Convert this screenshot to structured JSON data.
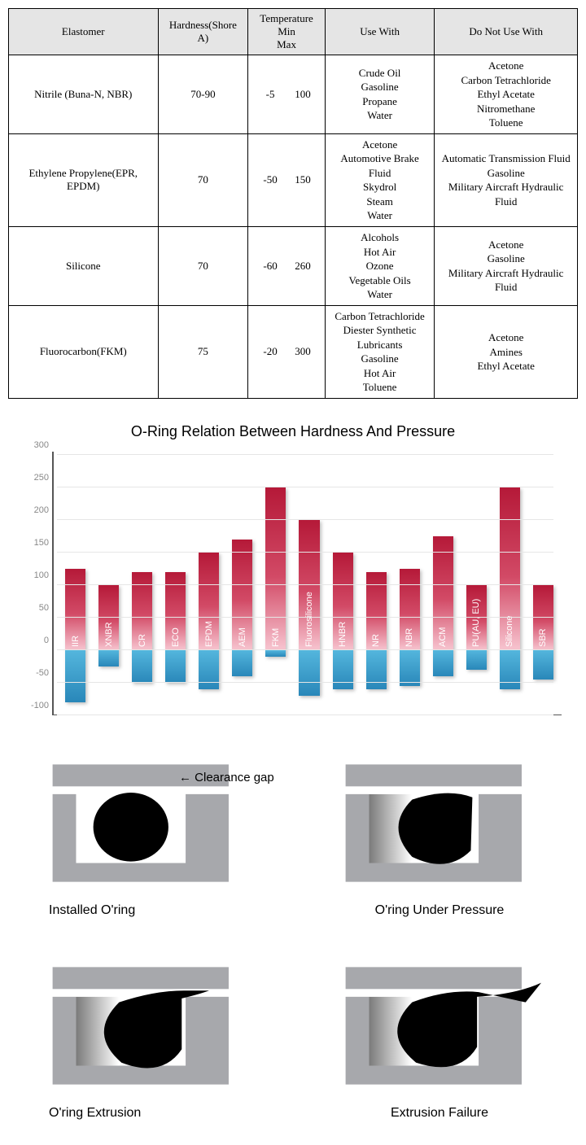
{
  "table": {
    "headers": {
      "elastomer": "Elastomer",
      "hardness": "Hardness(Shore A)",
      "temperature": "Temperature",
      "temp_min": "Min",
      "temp_max": "Max",
      "use_with": "Use With",
      "do_not_use": "Do Not Use With"
    },
    "rows": [
      {
        "elastomer": "Nitrile (Buna-N, NBR)",
        "hardness": "70-90",
        "temp_min": "-5",
        "temp_max": "100",
        "use_with": [
          "Crude Oil",
          "Gasoline",
          "Propane",
          "Water"
        ],
        "do_not_use": [
          "Acetone",
          "Carbon Tetrachloride",
          "Ethyl Acetate",
          "Nitromethane",
          "Toluene"
        ]
      },
      {
        "elastomer": "Ethylene Propylene(EPR, EPDM)",
        "hardness": "70",
        "temp_min": "-50",
        "temp_max": "150",
        "use_with": [
          "Acetone",
          "Automotive Brake Fluid",
          "Skydrol",
          "Steam",
          "Water"
        ],
        "do_not_use": [
          "Automatic Transmission Fluid",
          "Gasoline",
          "Military Aircraft Hydraulic Fluid"
        ]
      },
      {
        "elastomer": "Silicone",
        "hardness": "70",
        "temp_min": "-60",
        "temp_max": "260",
        "use_with": [
          "Alcohols",
          "Hot Air",
          "Ozone",
          "Vegetable Oils",
          "Water"
        ],
        "do_not_use": [
          "Acetone",
          "Gasoline",
          "Military Aircraft Hydraulic Fluid"
        ]
      },
      {
        "elastomer": "Fluorocarbon(FKM)",
        "hardness": "75",
        "temp_min": "-20",
        "temp_max": "300",
        "use_with": [
          "Carbon  Tetrachloride",
          "Diester Synthetic",
          "Lubricants",
          "Gasoline",
          "Hot Air",
          "Toluene"
        ],
        "do_not_use": [
          "Acetone",
          "Amines",
          "Ethyl Acetate"
        ]
      }
    ]
  },
  "chart": {
    "title": "O-Ring Relation Between Hardness And Pressure",
    "type": "bar",
    "ylim": [
      -100,
      300
    ],
    "ytick_step": 50,
    "yticks": [
      -100,
      -50,
      0,
      50,
      100,
      150,
      200,
      250,
      300
    ],
    "grid_color": "#e6e6e6",
    "axis_color": "#555555",
    "background_color": "#ffffff",
    "label_color": "#888888",
    "label_fontsize": 11,
    "title_fontsize": 18,
    "bar_top_gradient": [
      "#b51938",
      "#d24a66",
      "#f7c5d0"
    ],
    "bar_bottom_gradient": [
      "#54b6dd",
      "#2987b9"
    ],
    "series": [
      {
        "label": "IIR",
        "top": 125,
        "bottom": -80
      },
      {
        "label": "XNBR",
        "top": 100,
        "bottom": -25
      },
      {
        "label": "CR",
        "top": 120,
        "bottom": -50
      },
      {
        "label": "ECO",
        "top": 120,
        "bottom": -50
      },
      {
        "label": "EPDM",
        "top": 150,
        "bottom": -60
      },
      {
        "label": "AEM",
        "top": 170,
        "bottom": -40
      },
      {
        "label": "FKM",
        "top": 250,
        "bottom": -10
      },
      {
        "label": "Fluorosilicone",
        "top": 200,
        "bottom": -70
      },
      {
        "label": "HNBR",
        "top": 150,
        "bottom": -60
      },
      {
        "label": "NR",
        "top": 120,
        "bottom": -60
      },
      {
        "label": "NBR",
        "top": 125,
        "bottom": -55
      },
      {
        "label": "ACM",
        "top": 175,
        "bottom": -40
      },
      {
        "label": "PU(AU, EU)",
        "top": 100,
        "bottom": -30
      },
      {
        "label": "Silicone",
        "top": 250,
        "bottom": -60
      },
      {
        "label": "SBR",
        "top": 100,
        "bottom": -45
      }
    ]
  },
  "diagrams": {
    "clearance_label": "Clearance gap",
    "clearance_arrow": "←",
    "housing_color": "#a7a8ac",
    "oring_color": "#000000",
    "gradient_from": "#ffffff",
    "gradient_to": "#7a7a7a",
    "items": [
      {
        "key": "installed",
        "caption": "Installed O'ring",
        "show_arrow": true,
        "centered": false
      },
      {
        "key": "pressure",
        "caption": "O'ring Under Pressure",
        "show_arrow": false,
        "centered": true
      },
      {
        "key": "extrusion",
        "caption": "O'ring Extrusion",
        "show_arrow": false,
        "centered": false
      },
      {
        "key": "failure",
        "caption": "Extrusion Failure",
        "show_arrow": false,
        "centered": true
      }
    ]
  }
}
